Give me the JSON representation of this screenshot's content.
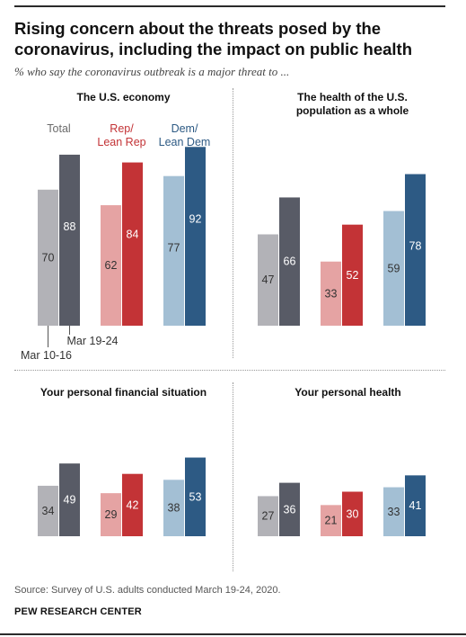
{
  "header": {
    "title": "Rising concern about the threats posed by the coronavirus, including the impact on public health",
    "subtitle": "% who say the coronavirus outbreak is a major threat to ..."
  },
  "legend": {
    "groups": [
      "Total",
      "Rep/\nLean Rep",
      "Dem/\nLean Dem"
    ],
    "periods": [
      "Mar 10-16",
      "Mar 19-24"
    ]
  },
  "footer": {
    "source": "Source: Survey of U.S. adults conducted March 19-24, 2020.",
    "brand": "PEW RESEARCH CENTER"
  },
  "colors": {
    "total_early": "#b2b2b7",
    "total_late": "#585b66",
    "rep_early": "#e5a3a3",
    "rep_late": "#c33336",
    "dem_early": "#a3bfd4",
    "dem_late": "#2d5a84"
  },
  "chart_data": [
    {
      "type": "bar",
      "title": "The U.S. economy",
      "categories": [
        "Total",
        "Rep/Lean Rep",
        "Dem/Lean Dem"
      ],
      "series": [
        {
          "name": "Mar 10-16",
          "values": [
            70,
            62,
            77
          ]
        },
        {
          "name": "Mar 19-24",
          "values": [
            88,
            84,
            92
          ]
        }
      ],
      "ylim": [
        0,
        100
      ]
    },
    {
      "type": "bar",
      "title": "The health of the U.S. population as a whole",
      "categories": [
        "Total",
        "Rep/Lean Rep",
        "Dem/Lean Dem"
      ],
      "series": [
        {
          "name": "Mar 10-16",
          "values": [
            47,
            33,
            59
          ]
        },
        {
          "name": "Mar 19-24",
          "values": [
            66,
            52,
            78
          ]
        }
      ],
      "ylim": [
        0,
        100
      ]
    },
    {
      "type": "bar",
      "title": "Your personal financial situation",
      "categories": [
        "Total",
        "Rep/Lean Rep",
        "Dem/Lean Dem"
      ],
      "series": [
        {
          "name": "Mar 10-16",
          "values": [
            34,
            29,
            38
          ]
        },
        {
          "name": "Mar 19-24",
          "values": [
            49,
            42,
            53
          ]
        }
      ],
      "ylim": [
        0,
        100
      ]
    },
    {
      "type": "bar",
      "title": "Your personal health",
      "categories": [
        "Total",
        "Rep/Lean Rep",
        "Dem/Lean Dem"
      ],
      "series": [
        {
          "name": "Mar 10-16",
          "values": [
            27,
            21,
            33
          ]
        },
        {
          "name": "Mar 19-24",
          "values": [
            36,
            30,
            41
          ]
        }
      ],
      "ylim": [
        0,
        100
      ]
    }
  ]
}
